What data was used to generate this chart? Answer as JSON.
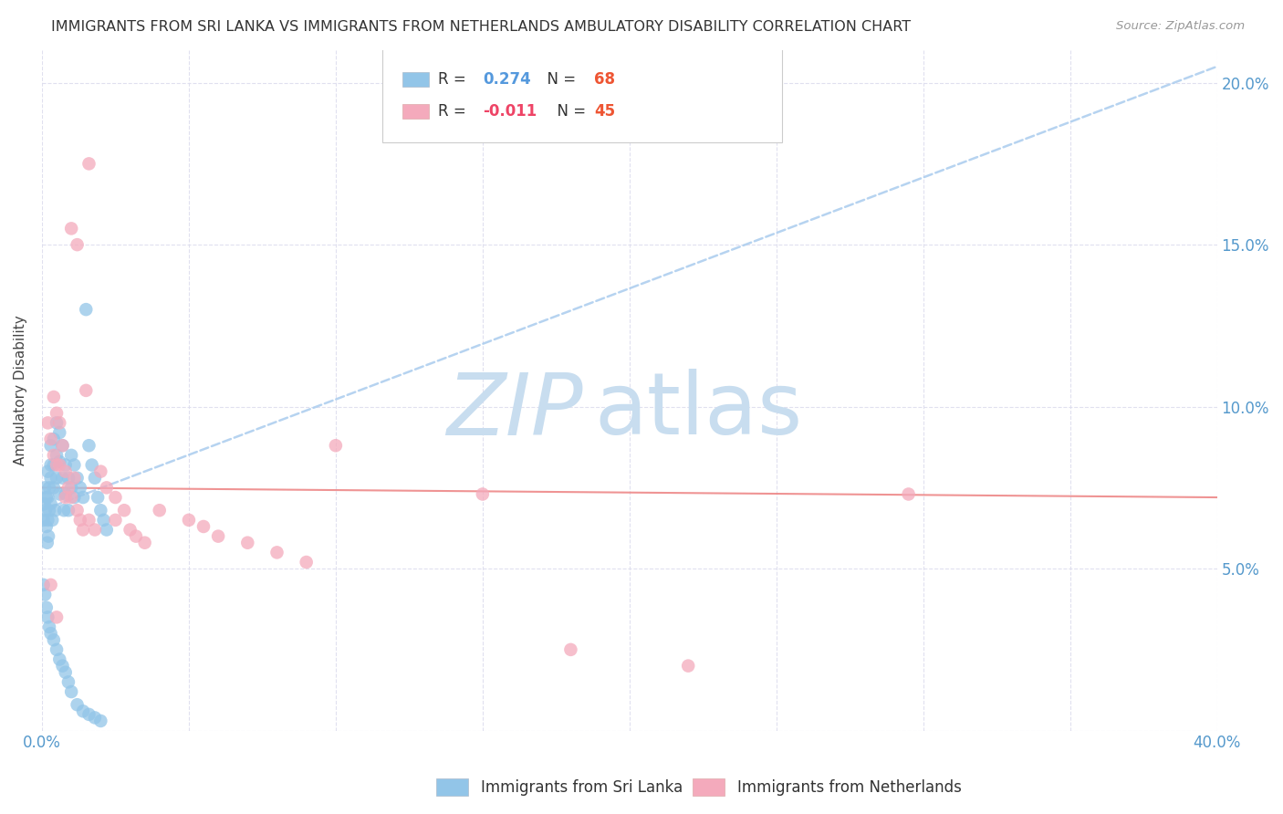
{
  "title": "IMMIGRANTS FROM SRI LANKA VS IMMIGRANTS FROM NETHERLANDS AMBULATORY DISABILITY CORRELATION CHART",
  "source": "Source: ZipAtlas.com",
  "ylabel": "Ambulatory Disability",
  "xlim": [
    0.0,
    0.4
  ],
  "ylim": [
    0.0,
    0.21
  ],
  "x_ticks": [
    0.0,
    0.05,
    0.1,
    0.15,
    0.2,
    0.25,
    0.3,
    0.35,
    0.4
  ],
  "x_tick_labels": [
    "0.0%",
    "",
    "",
    "",
    "",
    "",
    "",
    "",
    "40.0%"
  ],
  "y_ticks": [
    0.0,
    0.05,
    0.1,
    0.15,
    0.2
  ],
  "y_tick_labels": [
    "",
    "5.0%",
    "10.0%",
    "15.0%",
    "20.0%"
  ],
  "color_blue": "#92C5E8",
  "color_pink": "#F4AABC",
  "color_line_blue": "#AACCEE",
  "color_line_pink": "#EE8888",
  "legend_label1": "R =  0.274   N = 68",
  "legend_label2": "R = -0.011   N = 45",
  "legend_r1_color": "#5599DD",
  "legend_n1_color": "#EE6644",
  "legend_r2_color": "#EE4466",
  "legend_n2_color": "#EE6644",
  "bottom_label1": "Immigrants from Sri Lanka",
  "bottom_label2": "Immigrants from Netherlands",
  "watermark_zip": "ZIP",
  "watermark_atlas": "atlas",
  "watermark_color": "#C8DDEF",
  "sl_x": [
    0.0005,
    0.0008,
    0.001,
    0.0012,
    0.0015,
    0.0015,
    0.0018,
    0.002,
    0.002,
    0.002,
    0.0022,
    0.0025,
    0.0025,
    0.003,
    0.003,
    0.003,
    0.003,
    0.0035,
    0.004,
    0.004,
    0.004,
    0.0045,
    0.005,
    0.005,
    0.005,
    0.006,
    0.006,
    0.006,
    0.007,
    0.007,
    0.0075,
    0.008,
    0.008,
    0.009,
    0.009,
    0.01,
    0.01,
    0.011,
    0.011,
    0.012,
    0.013,
    0.014,
    0.015,
    0.016,
    0.017,
    0.018,
    0.019,
    0.02,
    0.021,
    0.022,
    0.0005,
    0.001,
    0.0015,
    0.002,
    0.0025,
    0.003,
    0.004,
    0.005,
    0.006,
    0.007,
    0.008,
    0.009,
    0.01,
    0.012,
    0.014,
    0.016,
    0.018,
    0.02
  ],
  "sl_y": [
    0.065,
    0.07,
    0.075,
    0.068,
    0.072,
    0.063,
    0.058,
    0.08,
    0.072,
    0.065,
    0.06,
    0.075,
    0.068,
    0.088,
    0.082,
    0.078,
    0.07,
    0.065,
    0.09,
    0.082,
    0.075,
    0.068,
    0.095,
    0.085,
    0.078,
    0.092,
    0.083,
    0.073,
    0.088,
    0.078,
    0.068,
    0.082,
    0.073,
    0.078,
    0.068,
    0.085,
    0.075,
    0.082,
    0.072,
    0.078,
    0.075,
    0.072,
    0.13,
    0.088,
    0.082,
    0.078,
    0.072,
    0.068,
    0.065,
    0.062,
    0.045,
    0.042,
    0.038,
    0.035,
    0.032,
    0.03,
    0.028,
    0.025,
    0.022,
    0.02,
    0.018,
    0.015,
    0.012,
    0.008,
    0.006,
    0.005,
    0.004,
    0.003
  ],
  "nl_x": [
    0.016,
    0.01,
    0.012,
    0.002,
    0.003,
    0.004,
    0.004,
    0.005,
    0.005,
    0.006,
    0.006,
    0.007,
    0.008,
    0.008,
    0.009,
    0.01,
    0.011,
    0.012,
    0.013,
    0.014,
    0.015,
    0.016,
    0.018,
    0.02,
    0.022,
    0.025,
    0.025,
    0.028,
    0.03,
    0.032,
    0.035,
    0.04,
    0.05,
    0.055,
    0.06,
    0.07,
    0.08,
    0.09,
    0.1,
    0.15,
    0.18,
    0.22,
    0.295,
    0.003,
    0.005
  ],
  "nl_y": [
    0.175,
    0.155,
    0.15,
    0.095,
    0.09,
    0.103,
    0.085,
    0.098,
    0.082,
    0.095,
    0.082,
    0.088,
    0.08,
    0.072,
    0.075,
    0.072,
    0.078,
    0.068,
    0.065,
    0.062,
    0.105,
    0.065,
    0.062,
    0.08,
    0.075,
    0.072,
    0.065,
    0.068,
    0.062,
    0.06,
    0.058,
    0.068,
    0.065,
    0.063,
    0.06,
    0.058,
    0.055,
    0.052,
    0.088,
    0.073,
    0.025,
    0.02,
    0.073,
    0.045,
    0.035
  ]
}
